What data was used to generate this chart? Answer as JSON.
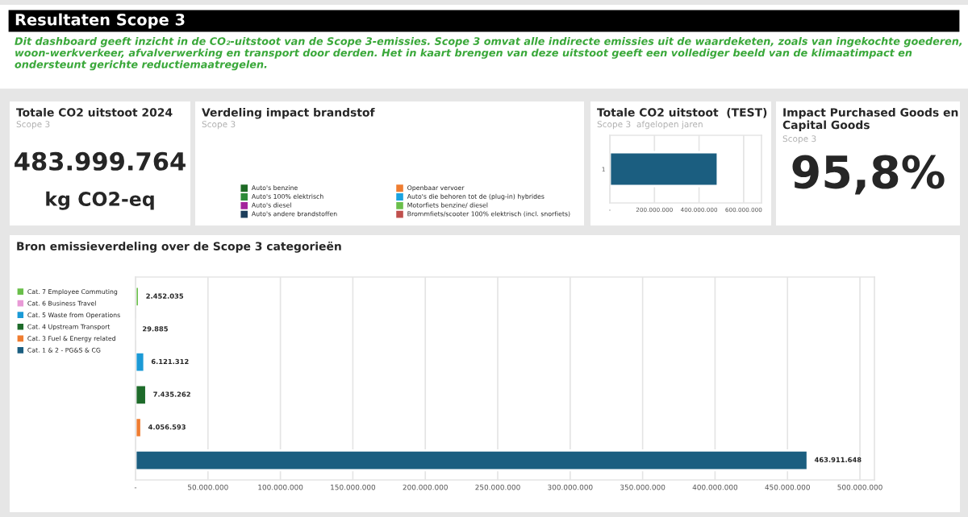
{
  "chart_data": [
    {
      "type": "other",
      "title": "Resultaten Scope 3",
      "subtitle": "Dit dashboard geeft inzicht in de CO₂-uitstoot van de Scope 3-emissies. Scope 3 omvat alle indirecte emissies uit de waardeketen, zoals van ingekochte goederen, woon-werkverkeer, afvalverwerking en transport door derden. Het in kaart brengen van deze uitstoot geeft een vollediger beeld van de klimaatimpact en ondersteunt gerichte reductiemaatregelen."
    },
    {
      "type": "other",
      "title": "Totale CO2 uitstoot 2024",
      "subtitle": "Scope 3",
      "annotations": [
        "483.999.764",
        "kg CO2-eq"
      ]
    },
    {
      "type": "other",
      "title": "Verdeling impact brandstof",
      "subtitle": "Scope 3",
      "categories": [
        "Auto's benzine",
        "Auto's 100% elektrisch",
        "Auto's diesel",
        "Auto's andere brandstoffen",
        "Openbaar vervoer",
        "Auto's die behoren tot de (plug-in) hybrides",
        "Motorfiets benzine/ diesel",
        "Brommfiets/scooter 100% elektrisch (incl. snorfiets)"
      ],
      "colors": [
        "#1e6b26",
        "#2e8b3a",
        "#a3249c",
        "#1d3f5c",
        "#ef7d31",
        "#1aa3e0",
        "#6abf4b",
        "#c0504d"
      ]
    },
    {
      "type": "bar",
      "title": "Totale CO2 uitstoot  (TEST)",
      "subtitle": "Scope 3  afgelopen jaren",
      "orientation": "horizontal",
      "categories": [
        "1"
      ],
      "series": [
        {
          "color": "#1b5e80",
          "values": [
            484000000
          ]
        }
      ],
      "xlim": [
        0,
        680000000
      ],
      "xticks": [
        {
          "value": 0,
          "label": "-"
        },
        {
          "value": 200000000,
          "label": "200.000.000"
        },
        {
          "value": 400000000,
          "label": "400.000.000"
        },
        {
          "value": 600000000,
          "label": "600.000.000"
        }
      ],
      "grid": "x"
    },
    {
      "type": "other",
      "title": "Impact Purchased Goods en Capital Goods",
      "subtitle": "Scope 3",
      "annotations": [
        "95,8%"
      ]
    },
    {
      "type": "bar",
      "title": "Bron emissieverdeling over de Scope 3 categorieën",
      "orientation": "horizontal",
      "categories": [
        null,
        null,
        null,
        null,
        null,
        null
      ],
      "series": [
        {
          "name": "Cat. 7 Employee Commuting",
          "color": "#6abf4b",
          "values": [
            2452035,
            null,
            null,
            null,
            null,
            null
          ],
          "value_labels": [
            "2.452.035",
            null,
            null,
            null,
            null,
            null
          ]
        },
        {
          "name": "Cat. 6 Business Travel",
          "color": "#e89ad6",
          "values": [
            null,
            29885,
            null,
            null,
            null,
            null
          ],
          "value_labels": [
            null,
            "29.885",
            null,
            null,
            null,
            null
          ]
        },
        {
          "name": "Cat. 5 Waste from Operations",
          "color": "#1b9ad6",
          "values": [
            null,
            null,
            6121312,
            null,
            null,
            null
          ],
          "value_labels": [
            null,
            null,
            "6.121.312",
            null,
            null,
            null
          ]
        },
        {
          "name": "Cat. 4 Upstream Transport",
          "color": "#1e6b2a",
          "values": [
            null,
            null,
            null,
            7435262,
            null,
            null
          ],
          "value_labels": [
            null,
            null,
            null,
            "7.435.262",
            null,
            null
          ]
        },
        {
          "name": "Cat. 3 Fuel & Energy related",
          "color": "#ef7d31",
          "values": [
            null,
            null,
            null,
            null,
            4056593,
            null
          ],
          "value_labels": [
            null,
            null,
            null,
            null,
            "4.056.593",
            null
          ]
        },
        {
          "name": "Cat. 1 & 2 - PG&S & CG",
          "color": "#1b5e80",
          "values": [
            null,
            null,
            null,
            null,
            null,
            463911648
          ],
          "value_labels": [
            null,
            null,
            null,
            null,
            null,
            "463.911.648"
          ]
        }
      ],
      "xlim": [
        0,
        510000000
      ],
      "xticks": [
        {
          "value": 0,
          "label": "-"
        },
        {
          "value": 50000000,
          "label": "50.000.000"
        },
        {
          "value": 100000000,
          "label": "100.000.000"
        },
        {
          "value": 150000000,
          "label": "150.000.000"
        },
        {
          "value": 200000000,
          "label": "200.000.000"
        },
        {
          "value": 250000000,
          "label": "250.000.000"
        },
        {
          "value": 300000000,
          "label": "300.000.000"
        },
        {
          "value": 350000000,
          "label": "350.000.000"
        },
        {
          "value": 400000000,
          "label": "400.000.000"
        },
        {
          "value": 450000000,
          "label": "450.000.000"
        },
        {
          "value": 500000000,
          "label": "500.000.000"
        }
      ],
      "grid": "x",
      "legend": "left"
    }
  ]
}
